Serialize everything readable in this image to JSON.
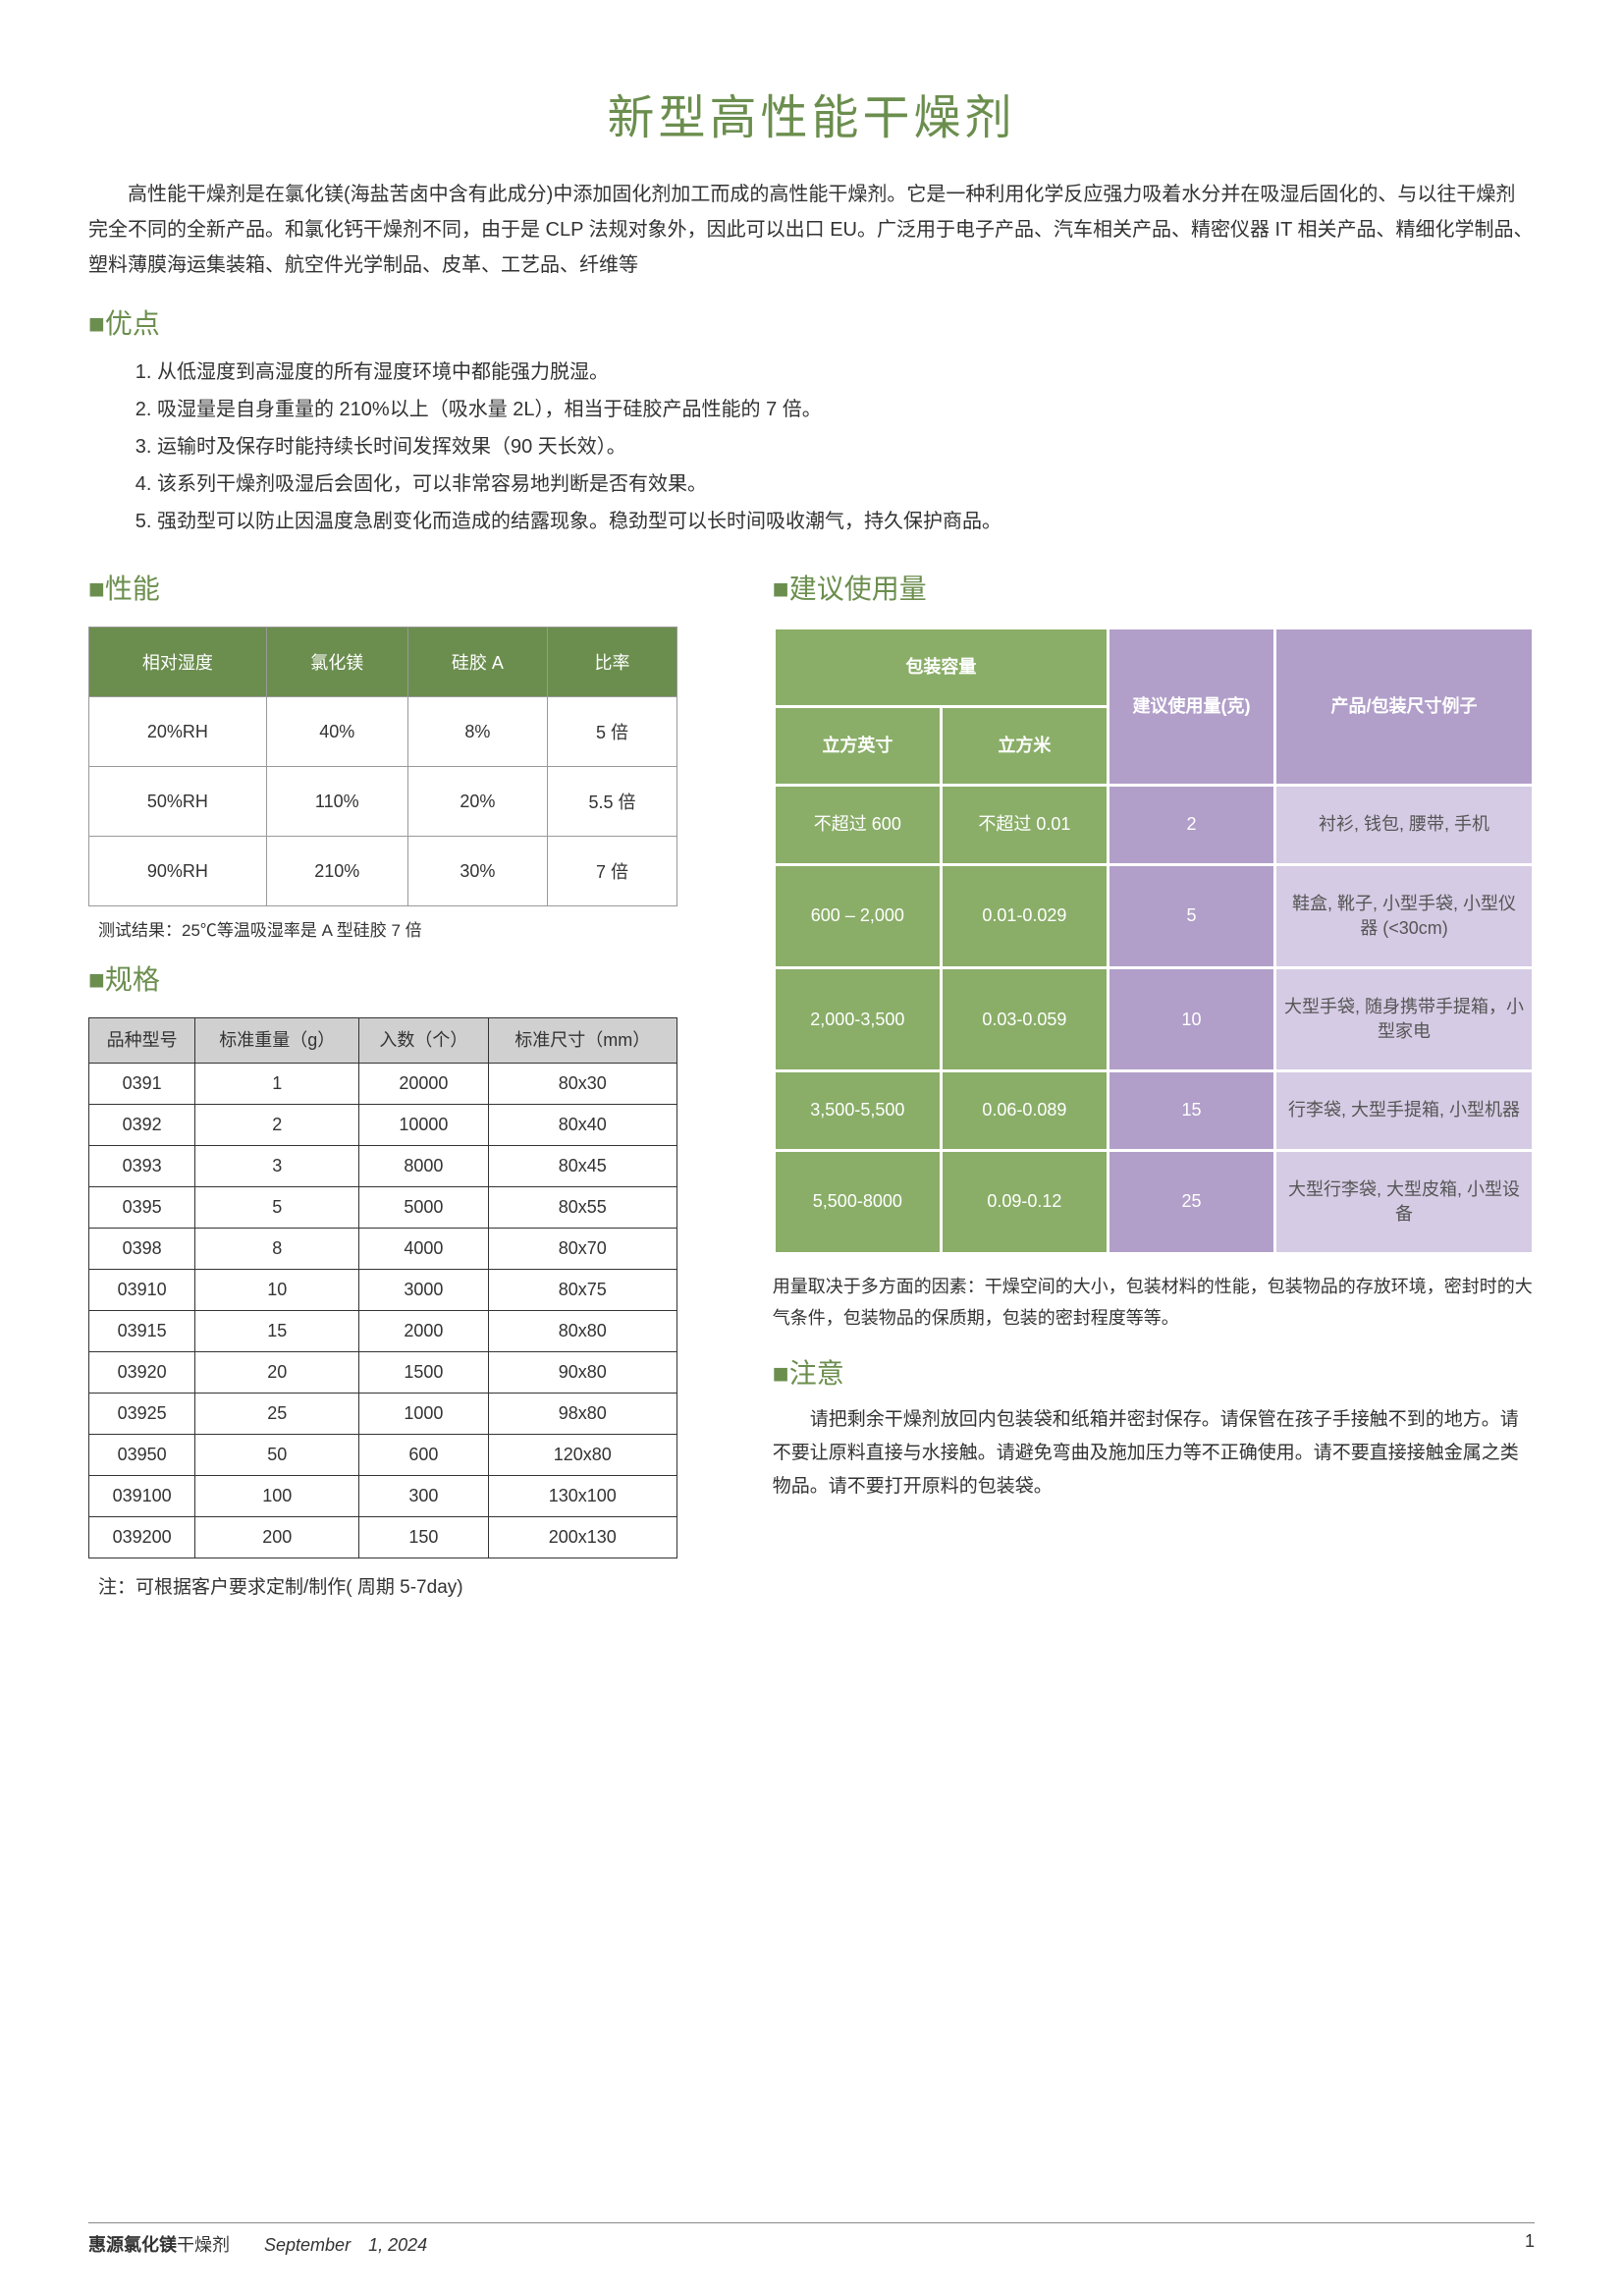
{
  "title": "新型高性能干燥剂",
  "intro": "高性能干燥剂是在氯化镁(海盐苦卤中含有此成分)中添加固化剂加工而成的高性能干燥剂。它是一种利用化学反应强力吸着水分并在吸湿后固化的、与以往干燥剂完全不同的全新产品。和氯化钙干燥剂不同，由于是 CLP 法规对象外，因此可以出口 EU。广泛用于电子产品、汽车相关产品、精密仪器 IT 相关产品、精细化学制品、塑料薄膜海运集装箱、航空件光学制品、皮革、工艺品、纤维等",
  "sections": {
    "advantages": "■优点",
    "performance": "■性能",
    "spec": "■规格",
    "usage": "■建议使用量",
    "caution": "■注意"
  },
  "advantages": [
    "从低湿度到高湿度的所有湿度环境中都能强力脱湿。",
    "吸湿量是自身重量的 210%以上（吸水量 2L），相当于硅胶产品性能的 7 倍。",
    "运输时及保存时能持续长时间发挥效果（90 天长效）。",
    "该系列干燥剂吸湿后会固化，可以非常容易地判断是否有效果。",
    "强劲型可以防止因温度急剧变化而造成的结露现象。稳劲型可以长时间吸收潮气，持久保护商品。"
  ],
  "perf_table": {
    "headers": [
      "相对湿度",
      "氯化镁",
      "硅胶 A",
      "比率"
    ],
    "rows": [
      [
        "20%RH",
        "40%",
        "8%",
        "5 倍"
      ],
      [
        "50%RH",
        "110%",
        "20%",
        "5.5 倍"
      ],
      [
        "90%RH",
        "210%",
        "30%",
        "7 倍"
      ]
    ],
    "note": "测试结果：25℃等温吸湿率是 A 型硅胶 7 倍"
  },
  "spec_table": {
    "headers": [
      "品种型号",
      "标准重量（g）",
      "入数（个）",
      "标准尺寸（mm）"
    ],
    "rows": [
      [
        "0391",
        "1",
        "20000",
        "80x30"
      ],
      [
        "0392",
        "2",
        "10000",
        "80x40"
      ],
      [
        "0393",
        "3",
        "8000",
        "80x45"
      ],
      [
        "0395",
        "5",
        "5000",
        "80x55"
      ],
      [
        "0398",
        "8",
        "4000",
        "80x70"
      ],
      [
        "03910",
        "10",
        "3000",
        "80x75"
      ],
      [
        "03915",
        "15",
        "2000",
        "80x80"
      ],
      [
        "03920",
        "20",
        "1500",
        "90x80"
      ],
      [
        "03925",
        "25",
        "1000",
        "98x80"
      ],
      [
        "03950",
        "50",
        "600",
        "120x80"
      ],
      [
        "039100",
        "100",
        "300",
        "130x100"
      ],
      [
        "039200",
        "200",
        "150",
        "200x130"
      ]
    ],
    "note": "注：可根据客户要求定制/制作( 周期 5-7day)"
  },
  "usage_table": {
    "head": {
      "capacity": "包装容量",
      "inch": "立方英寸",
      "meter": "立方米",
      "amount": "建议使用量(克)",
      "example": "产品/包装尺寸例子"
    },
    "rows": [
      {
        "inch": "不超过 600",
        "meter": "不超过 0.01",
        "amount": "2",
        "example": "衬衫, 钱包, 腰带, 手机"
      },
      {
        "inch": "600 – 2,000",
        "meter": "0.01-0.029",
        "amount": "5",
        "example": "鞋盒, 靴子, 小型手袋, 小型仪器 (<30cm)"
      },
      {
        "inch": "2,000-3,500",
        "meter": "0.03-0.059",
        "amount": "10",
        "example": "大型手袋, 随身携带手提箱，小型家电"
      },
      {
        "inch": "3,500-5,500",
        "meter": "0.06-0.089",
        "amount": "15",
        "example": "行李袋, 大型手提箱, 小型机器"
      },
      {
        "inch": "5,500-8000",
        "meter": "0.09-0.12",
        "amount": "25",
        "example": "大型行李袋, 大型皮箱, 小型设备"
      }
    ],
    "note": "用量取决于多方面的因素：干燥空间的大小，包装材料的性能，包装物品的存放环境，密封时的大气条件，包装物品的保质期，包装的密封程度等等。"
  },
  "caution": "请把剩余干燥剂放回内包装袋和纸箱并密封保存。请保管在孩子手接触不到的地方。请不要让原料直接与水接触。请避免弯曲及施加压力等不正确使用。请不要直接接触金属之类物品。请不要打开原料的包装袋。",
  "footer": {
    "brand": "惠源氯化镁",
    "product": "干燥剂",
    "date": "September　1, 2024",
    "page": "1"
  },
  "colors": {
    "green": "#6b8e4e",
    "green_cell": "#8aae68",
    "purple": "#b19fc9",
    "purple_light": "#d5cbe4",
    "grey_header": "#d0d0d0"
  }
}
